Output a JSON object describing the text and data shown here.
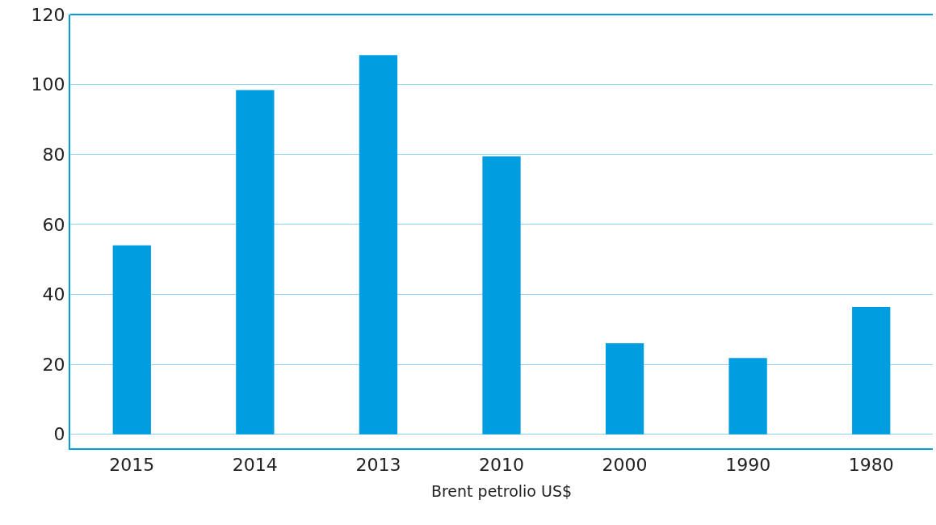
{
  "chart_data": {
    "type": "bar",
    "xlabel": "Brent petrolio US$",
    "categories": [
      "2015",
      "2014",
      "2013",
      "2010",
      "2000",
      "1990",
      "1980"
    ],
    "values": [
      54,
      98.4,
      108.4,
      79.5,
      26,
      21.8,
      36.4
    ],
    "color": "#009ee0",
    "ylim": [
      -4,
      120
    ],
    "yticks": [
      0,
      20,
      40,
      60,
      80,
      100,
      120
    ],
    "grid": "y"
  }
}
